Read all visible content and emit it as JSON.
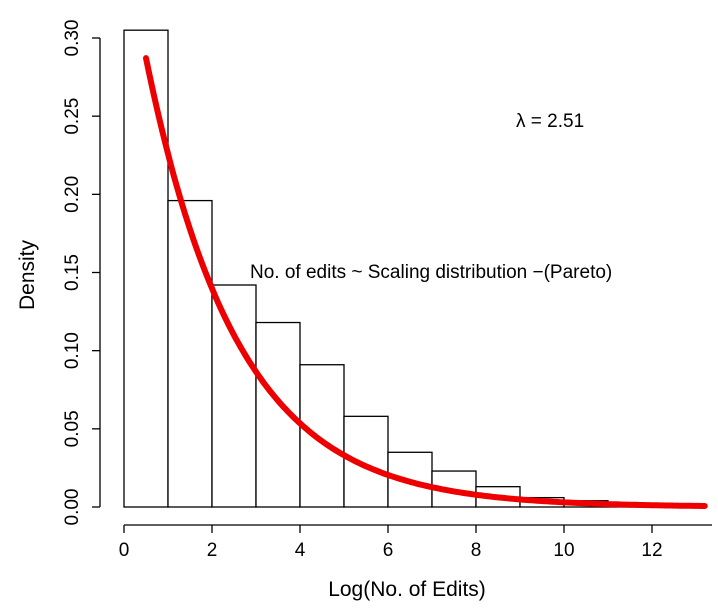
{
  "chart_data": {
    "type": "bar",
    "subtype": "histogram",
    "xlabel": "Log(No. of Edits)",
    "ylabel": "Density",
    "xlim": [
      0,
      13.2
    ],
    "ylim": [
      0,
      0.31
    ],
    "x_ticks": [
      0,
      2,
      4,
      6,
      8,
      10,
      12
    ],
    "y_ticks": [
      0.0,
      0.05,
      0.1,
      0.15,
      0.2,
      0.25,
      0.3
    ],
    "y_tick_labels": [
      "0.00",
      "0.05",
      "0.10",
      "0.15",
      "0.20",
      "0.25",
      "0.30"
    ],
    "bins": [
      {
        "x0": 0,
        "x1": 1,
        "density": 0.305
      },
      {
        "x0": 1,
        "x1": 2,
        "density": 0.196
      },
      {
        "x0": 2,
        "x1": 3,
        "density": 0.142
      },
      {
        "x0": 3,
        "x1": 4,
        "density": 0.118
      },
      {
        "x0": 4,
        "x1": 5,
        "density": 0.091
      },
      {
        "x0": 5,
        "x1": 6,
        "density": 0.058
      },
      {
        "x0": 6,
        "x1": 7,
        "density": 0.035
      },
      {
        "x0": 7,
        "x1": 8,
        "density": 0.023
      },
      {
        "x0": 8,
        "x1": 9,
        "density": 0.013
      },
      {
        "x0": 9,
        "x1": 10,
        "density": 0.006
      },
      {
        "x0": 10,
        "x1": 11,
        "density": 0.004
      },
      {
        "x0": 11,
        "x1": 12,
        "density": 0.002
      },
      {
        "x0": 12,
        "x1": 13,
        "density": 0.001
      }
    ],
    "curve": {
      "kind": "exponential-decay",
      "rate": 0.48,
      "amplitude": 0.365,
      "x_range": [
        0.5,
        13.2
      ],
      "color": "#ee0000"
    },
    "annotations": {
      "lambda_label": "λ = 2.51",
      "fit_label": "No. of edits ~ Scaling distribution −(Pareto)"
    },
    "bar_fill": "#ffffff",
    "bar_stroke": "#000000",
    "grid": false
  }
}
